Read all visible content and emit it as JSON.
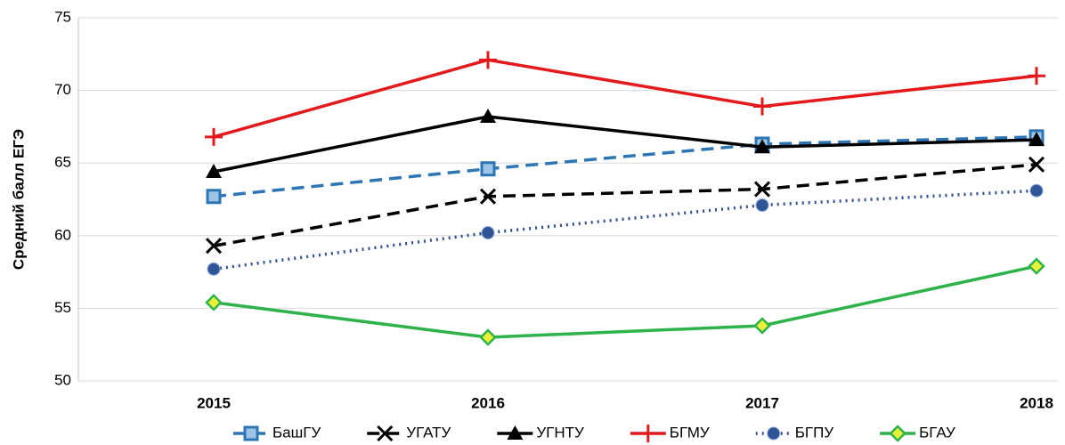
{
  "chart_data": {
    "type": "line",
    "y_label": "Средний балл ЕГЭ",
    "categories": [
      "2015",
      "2016",
      "2017",
      "2018"
    ],
    "ylim": [
      50,
      75
    ],
    "yticks": [
      50,
      55,
      60,
      65,
      70,
      75
    ],
    "grid": true,
    "legend": "bottom",
    "series": [
      {
        "name": "БашГУ",
        "color": "#2e75b6",
        "dash": "dashed",
        "marker": "square",
        "marker_fill": "#9dc3e6",
        "values": [
          62.7,
          64.6,
          66.3,
          66.8
        ]
      },
      {
        "name": "УГАТУ",
        "color": "#000000",
        "dash": "dashed",
        "marker": "x",
        "marker_fill": "#000000",
        "values": [
          59.3,
          62.7,
          63.2,
          64.9
        ]
      },
      {
        "name": "УГНТУ",
        "color": "#000000",
        "dash": "solid",
        "marker": "triangle",
        "marker_fill": "#000000",
        "values": [
          64.4,
          68.2,
          66.1,
          66.6
        ]
      },
      {
        "name": "БГМУ",
        "color": "#e3191c",
        "dash": "solid",
        "marker": "plus",
        "marker_fill": "#e3191c",
        "values": [
          66.8,
          72.1,
          68.9,
          71.0
        ]
      },
      {
        "name": "БГПУ",
        "color": "#2f4f8f",
        "dash": "dotted",
        "marker": "circle",
        "marker_fill": "#2f5597",
        "values": [
          57.7,
          60.2,
          62.1,
          63.1
        ]
      },
      {
        "name": "БГАУ",
        "color": "#2db34a",
        "dash": "solid",
        "marker": "diamond",
        "marker_fill": "#e8f03a",
        "values": [
          55.4,
          53.0,
          53.8,
          57.9
        ]
      }
    ]
  }
}
